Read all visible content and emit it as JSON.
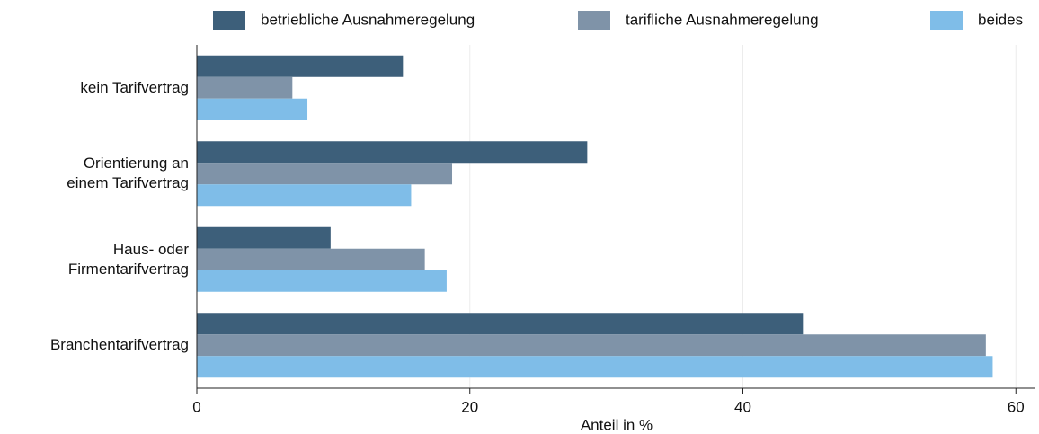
{
  "chart_data": {
    "type": "barh",
    "categories": [
      "kein Tarifvertrag",
      "Orientierung an\neinem Tarifvertrag",
      "Haus- oder\nFirmentarifvertrag",
      "Branchentarifvertrag"
    ],
    "series": [
      {
        "name": "betriebliche Ausnahmeregelung",
        "color": "#3d5f7a",
        "values": [
          15.1,
          28.6,
          9.8,
          44.4
        ]
      },
      {
        "name": "tarifliche Ausnahmeregelung",
        "color": "#7f93a8",
        "values": [
          7.0,
          18.7,
          16.7,
          57.8
        ]
      },
      {
        "name": "beides",
        "color": "#7fbde8",
        "values": [
          8.1,
          15.7,
          18.3,
          58.3
        ]
      }
    ],
    "xlabel": "Anteil in %",
    "xlim": [
      0,
      61.3
    ],
    "xticks": [
      0,
      20,
      40,
      60
    ],
    "grid": true,
    "legend": "top"
  }
}
